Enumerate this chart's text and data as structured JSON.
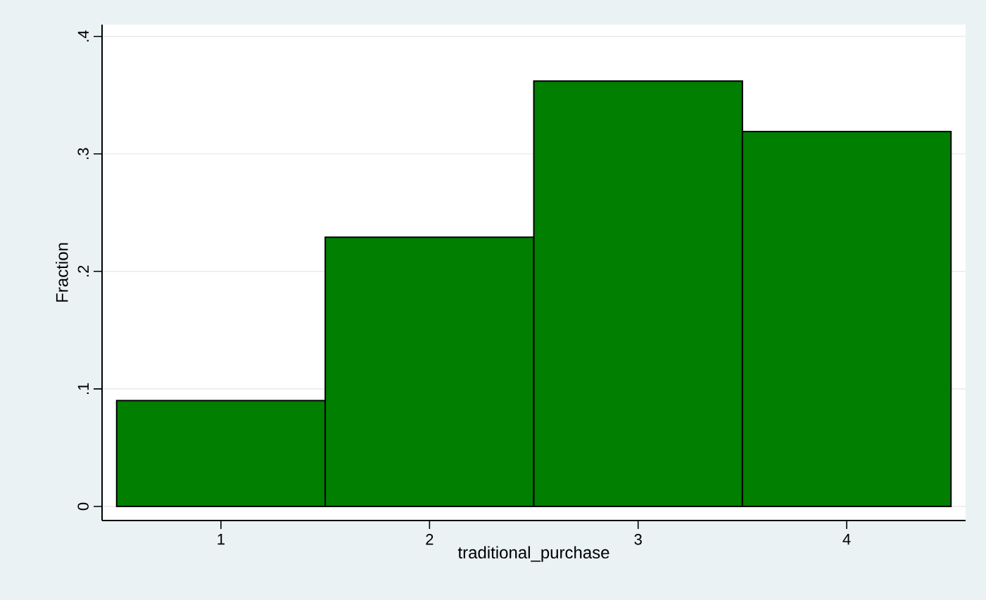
{
  "chart_data": {
    "type": "histogram",
    "xlabel": "traditional_purchase",
    "ylabel": "Fraction",
    "bins": [
      0.5,
      1.5,
      2.5,
      3.5,
      4.5
    ],
    "values": [
      0.09,
      0.229,
      0.362,
      0.319
    ],
    "color": "#007f00",
    "xlim": [
      0.43,
      4.57
    ],
    "ylim": [
      -0.012,
      0.41
    ],
    "xticks": [
      1,
      2,
      3,
      4
    ],
    "yticks": [
      0,
      {
        "value": 0.1,
        "label": ".1"
      },
      {
        "value": 0.2,
        "label": ".2"
      },
      {
        "value": 0.3,
        "label": ".3"
      },
      {
        "value": 0.4,
        "label": ".4"
      }
    ],
    "grid": "y"
  }
}
